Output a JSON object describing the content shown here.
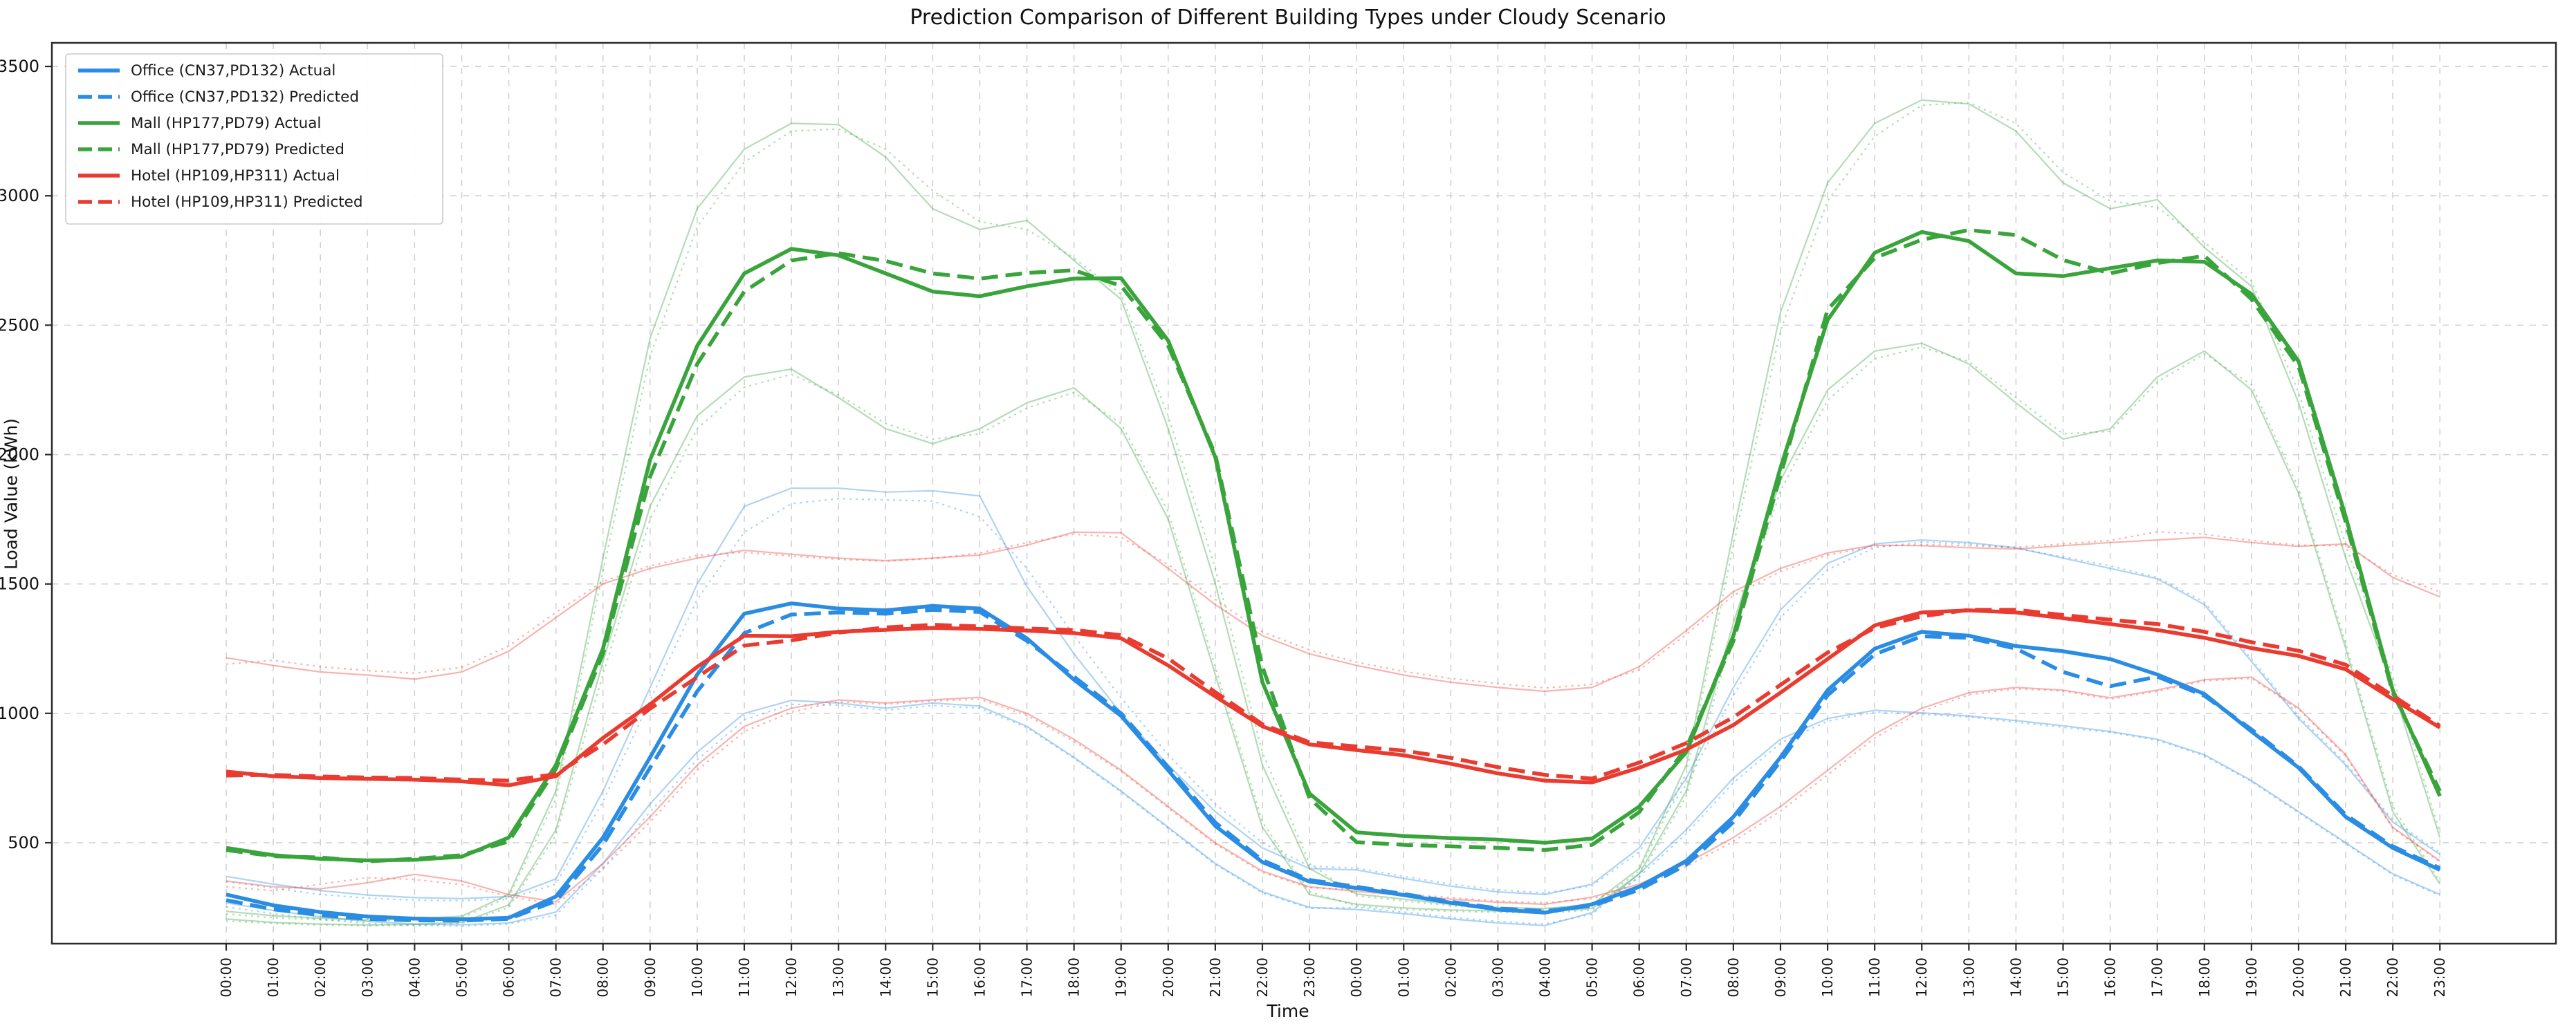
{
  "title": "Prediction Comparison of Different Building Types under Cloudy Scenario",
  "xlabel": "Time",
  "ylabel": "Load Value (kWh)",
  "chart_data": {
    "type": "line",
    "grid": true,
    "legend_position": "upper-left",
    "colors": {
      "office": "#2a8ce2",
      "mall": "#3aa43c",
      "hotel": "#ea3b30",
      "grid": "#c9c9c9",
      "spine": "#2b2b2b",
      "text": "#111111"
    },
    "ylim": [
      110,
      3591
    ],
    "yticks": [
      500,
      1000,
      1500,
      2000,
      2500,
      3000,
      3500
    ],
    "x_labels": [
      "00:00",
      "01:00",
      "02:00",
      "03:00",
      "04:00",
      "05:00",
      "06:00",
      "07:00",
      "08:00",
      "09:00",
      "10:00",
      "11:00",
      "12:00",
      "13:00",
      "14:00",
      "15:00",
      "16:00",
      "17:00",
      "18:00",
      "19:00",
      "20:00",
      "21:00",
      "22:00",
      "23:00",
      "00:00",
      "01:00",
      "02:00",
      "03:00",
      "04:00",
      "05:00",
      "06:00",
      "07:00",
      "08:00",
      "09:00",
      "10:00",
      "11:00",
      "12:00",
      "13:00",
      "14:00",
      "15:00",
      "16:00",
      "17:00",
      "18:00",
      "19:00",
      "20:00",
      "21:00",
      "22:00",
      "23:00"
    ],
    "series": [
      {
        "id": "office-b1-actual",
        "label": null,
        "color": "office",
        "style": "faint-solid",
        "values": [
          370,
          340,
          315,
          298,
          288,
          284,
          292,
          360,
          700,
          1100,
          1500,
          1800,
          1870,
          1870,
          1855,
          1860,
          1840,
          1490,
          1230,
          1000,
          800,
          620,
          480,
          400,
          395,
          362,
          332,
          310,
          300,
          340,
          480,
          750,
          1100,
          1400,
          1580,
          1655,
          1670,
          1660,
          1640,
          1600,
          1560,
          1520,
          1420,
          1200,
          980,
          800,
          580,
          455
        ]
      },
      {
        "id": "office-b1-predicted",
        "label": null,
        "color": "office",
        "style": "faint-dotted",
        "values": [
          350,
          325,
          300,
          286,
          278,
          276,
          284,
          340,
          660,
          1050,
          1440,
          1700,
          1810,
          1830,
          1825,
          1820,
          1760,
          1560,
          1300,
          1060,
          840,
          650,
          500,
          410,
          402,
          370,
          340,
          318,
          306,
          334,
          465,
          725,
          1070,
          1370,
          1555,
          1640,
          1662,
          1655,
          1638,
          1605,
          1570,
          1525,
          1430,
          1210,
          990,
          808,
          588,
          462
        ]
      },
      {
        "id": "office-b2-actual",
        "label": null,
        "color": "office",
        "style": "faint-solid",
        "values": [
          268,
          238,
          214,
          196,
          186,
          183,
          190,
          232,
          420,
          650,
          850,
          1000,
          1050,
          1040,
          1020,
          1040,
          1028,
          950,
          830,
          700,
          560,
          420,
          310,
          250,
          242,
          226,
          206,
          190,
          180,
          230,
          380,
          550,
          750,
          900,
          980,
          1012,
          1002,
          990,
          972,
          952,
          930,
          900,
          840,
          740,
          620,
          500,
          380,
          300
        ]
      },
      {
        "id": "office-b2-predicted",
        "label": null,
        "color": "office",
        "style": "faint-dotted",
        "values": [
          252,
          226,
          204,
          188,
          180,
          178,
          186,
          220,
          400,
          620,
          820,
          975,
          1035,
          1032,
          1012,
          1030,
          1020,
          945,
          826,
          696,
          556,
          416,
          306,
          246,
          250,
          232,
          212,
          196,
          186,
          224,
          368,
          535,
          732,
          885,
          970,
          1005,
          996,
          986,
          966,
          946,
          926,
          896,
          836,
          736,
          616,
          496,
          376,
          296
        ]
      },
      {
        "id": "mall-g1-actual",
        "label": null,
        "color": "mall",
        "style": "faint-solid",
        "values": [
          235,
          218,
          208,
          202,
          206,
          216,
          300,
          700,
          1600,
          2450,
          2950,
          3180,
          3280,
          3275,
          3150,
          2950,
          2870,
          2905,
          2750,
          2600,
          2100,
          1500,
          800,
          400,
          302,
          282,
          262,
          250,
          246,
          262,
          400,
          800,
          1700,
          2550,
          3050,
          3280,
          3370,
          3355,
          3250,
          3050,
          2950,
          2985,
          2800,
          2650,
          2200,
          1600,
          1100,
          520
        ]
      },
      {
        "id": "mall-g1-predicted",
        "label": null,
        "color": "mall",
        "style": "faint-dotted",
        "values": [
          225,
          210,
          202,
          198,
          202,
          210,
          290,
          670,
          1550,
          2380,
          2880,
          3130,
          3250,
          3258,
          3180,
          3020,
          2900,
          2870,
          2760,
          2620,
          2150,
          1560,
          850,
          420,
          295,
          275,
          256,
          245,
          240,
          256,
          390,
          770,
          1650,
          2480,
          2980,
          3230,
          3350,
          3360,
          3280,
          3090,
          2980,
          2955,
          2820,
          2670,
          2240,
          1650,
          1140,
          540
        ]
      },
      {
        "id": "mall-g2-actual",
        "label": null,
        "color": "mall",
        "style": "faint-solid",
        "values": [
          205,
          192,
          186,
          182,
          185,
          192,
          260,
          550,
          1200,
          1800,
          2150,
          2300,
          2330,
          2220,
          2100,
          2042,
          2100,
          2200,
          2258,
          2100,
          1750,
          1150,
          560,
          300,
          262,
          248,
          240,
          236,
          232,
          246,
          380,
          700,
          1350,
          1900,
          2250,
          2400,
          2430,
          2350,
          2200,
          2060,
          2100,
          2300,
          2400,
          2250,
          1850,
          1250,
          620,
          340
        ]
      },
      {
        "id": "mall-g2-predicted",
        "label": null,
        "color": "mall",
        "style": "faint-dotted",
        "values": [
          198,
          188,
          182,
          179,
          181,
          188,
          250,
          530,
          1150,
          1750,
          2100,
          2260,
          2310,
          2230,
          2120,
          2060,
          2080,
          2180,
          2240,
          2120,
          1780,
          1180,
          580,
          310,
          255,
          242,
          235,
          231,
          228,
          240,
          368,
          680,
          1310,
          1860,
          2210,
          2370,
          2415,
          2360,
          2220,
          2080,
          2090,
          2280,
          2390,
          2270,
          1870,
          1270,
          640,
          350
        ]
      },
      {
        "id": "hotel-r1-actual",
        "label": null,
        "color": "hotel",
        "style": "faint-solid",
        "values": [
          1215,
          1185,
          1160,
          1148,
          1132,
          1160,
          1240,
          1370,
          1500,
          1560,
          1600,
          1630,
          1615,
          1600,
          1590,
          1600,
          1612,
          1650,
          1700,
          1698,
          1560,
          1420,
          1300,
          1230,
          1185,
          1148,
          1120,
          1100,
          1085,
          1100,
          1180,
          1320,
          1470,
          1560,
          1620,
          1650,
          1648,
          1640,
          1635,
          1648,
          1660,
          1670,
          1680,
          1660,
          1645,
          1655,
          1525,
          1450
        ]
      },
      {
        "id": "hotel-r1-predicted",
        "label": null,
        "color": "hotel",
        "style": "faint-dotted",
        "values": [
          1190,
          1205,
          1180,
          1165,
          1155,
          1178,
          1260,
          1390,
          1510,
          1570,
          1610,
          1622,
          1608,
          1595,
          1588,
          1598,
          1620,
          1660,
          1692,
          1680,
          1575,
          1440,
          1315,
          1245,
          1198,
          1162,
          1135,
          1115,
          1098,
          1112,
          1168,
          1305,
          1455,
          1548,
          1612,
          1645,
          1652,
          1648,
          1642,
          1655,
          1668,
          1702,
          1692,
          1668,
          1650,
          1648,
          1535,
          1470
        ]
      },
      {
        "id": "hotel-r2-actual",
        "label": null,
        "color": "hotel",
        "style": "faint-solid",
        "values": [
          352,
          330,
          322,
          345,
          378,
          352,
          300,
          272,
          420,
          600,
          800,
          950,
          1020,
          1052,
          1040,
          1052,
          1062,
          1000,
          900,
          780,
          640,
          500,
          390,
          330,
          312,
          296,
          282,
          270,
          262,
          290,
          340,
          420,
          520,
          640,
          780,
          920,
          1020,
          1080,
          1100,
          1090,
          1060,
          1090,
          1130,
          1140,
          1020,
          840,
          560,
          430
        ]
      },
      {
        "id": "hotel-r2-predicted",
        "label": null,
        "color": "hotel",
        "style": "faint-dotted",
        "values": [
          330,
          315,
          340,
          365,
          358,
          338,
          292,
          262,
          400,
          580,
          780,
          930,
          1005,
          1045,
          1035,
          1048,
          1055,
          992,
          892,
          775,
          635,
          495,
          385,
          326,
          320,
          302,
          288,
          275,
          268,
          284,
          330,
          408,
          505,
          622,
          762,
          905,
          1008,
          1072,
          1095,
          1086,
          1055,
          1085,
          1125,
          1135,
          1015,
          835,
          556,
          426
        ]
      },
      {
        "id": "office-actual",
        "label": "Office (CN37,PD132) Actual",
        "color": "office",
        "style": "main-solid",
        "values": [
          300,
          258,
          232,
          215,
          207,
          204,
          210,
          292,
          520,
          830,
          1150,
          1385,
          1425,
          1405,
          1398,
          1415,
          1405,
          1290,
          1130,
          990,
          780,
          565,
          425,
          350,
          325,
          298,
          268,
          242,
          230,
          262,
          330,
          430,
          600,
          830,
          1090,
          1250,
          1315,
          1300,
          1260,
          1240,
          1210,
          1150,
          1075,
          930,
          790,
          600,
          480,
          395
        ]
      },
      {
        "id": "office-predicted",
        "label": "Office (CN37,PD132) Predicted",
        "color": "office",
        "style": "main-dashed",
        "values": [
          278,
          243,
          220,
          206,
          200,
          199,
          206,
          275,
          492,
          790,
          1085,
          1310,
          1382,
          1390,
          1385,
          1400,
          1392,
          1280,
          1142,
          1000,
          792,
          578,
          432,
          356,
          330,
          302,
          272,
          246,
          236,
          256,
          318,
          415,
          580,
          815,
          1070,
          1228,
          1298,
          1292,
          1250,
          1160,
          1105,
          1142,
          1068,
          938,
          795,
          608,
          486,
          402
        ]
      },
      {
        "id": "mall-actual",
        "label": "Mall (HP177,PD79) Actual",
        "color": "mall",
        "style": "main-solid",
        "values": [
          480,
          452,
          438,
          432,
          434,
          446,
          520,
          800,
          1250,
          1980,
          2420,
          2700,
          2795,
          2770,
          2700,
          2630,
          2612,
          2650,
          2680,
          2682,
          2440,
          1990,
          1120,
          690,
          540,
          526,
          518,
          512,
          500,
          516,
          640,
          850,
          1300,
          1950,
          2520,
          2780,
          2860,
          2825,
          2700,
          2690,
          2720,
          2750,
          2745,
          2620,
          2360,
          1760,
          1090,
          680
        ]
      },
      {
        "id": "mall-predicted",
        "label": "Mall (HP177,PD79) Predicted",
        "color": "mall",
        "style": "main-dashed",
        "values": [
          472,
          448,
          443,
          428,
          438,
          452,
          505,
          785,
          1230,
          1915,
          2350,
          2630,
          2750,
          2778,
          2748,
          2700,
          2680,
          2702,
          2712,
          2652,
          2420,
          2000,
          1180,
          672,
          502,
          492,
          486,
          480,
          472,
          492,
          618,
          868,
          1280,
          1920,
          2560,
          2760,
          2830,
          2868,
          2848,
          2752,
          2700,
          2740,
          2768,
          2600,
          2340,
          1740,
          1080,
          700
        ]
      },
      {
        "id": "hotel-actual",
        "label": "Hotel (HP109,HP311) Actual",
        "color": "hotel",
        "style": "main-solid",
        "values": [
          775,
          757,
          750,
          747,
          744,
          737,
          722,
          757,
          905,
          1035,
          1180,
          1300,
          1298,
          1315,
          1323,
          1330,
          1326,
          1320,
          1310,
          1290,
          1185,
          1065,
          950,
          880,
          858,
          838,
          805,
          768,
          740,
          733,
          790,
          860,
          955,
          1080,
          1210,
          1340,
          1390,
          1398,
          1390,
          1368,
          1345,
          1322,
          1292,
          1252,
          1222,
          1170,
          1055,
          945
        ]
      },
      {
        "id": "hotel-predicted",
        "label": "Hotel (HP109,HP311) Predicted",
        "color": "hotel",
        "style": "main-dashed",
        "values": [
          760,
          762,
          756,
          752,
          750,
          744,
          740,
          765,
          880,
          1018,
          1140,
          1262,
          1282,
          1312,
          1332,
          1342,
          1336,
          1328,
          1322,
          1302,
          1212,
          1082,
          958,
          888,
          872,
          856,
          828,
          792,
          762,
          748,
          810,
          885,
          985,
          1110,
          1235,
          1330,
          1375,
          1400,
          1400,
          1380,
          1362,
          1345,
          1315,
          1275,
          1242,
          1188,
          1068,
          952
        ]
      }
    ]
  }
}
